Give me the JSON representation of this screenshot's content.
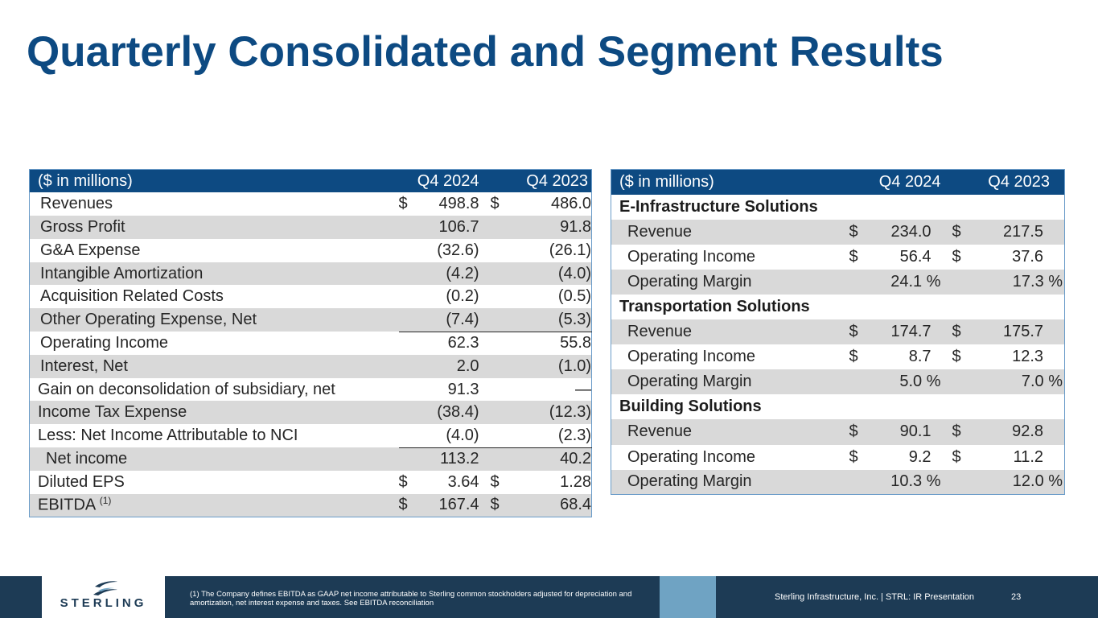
{
  "title": "Quarterly Consolidated and Segment Results",
  "left_table": {
    "header": {
      "label": "($ in millions)",
      "col1": "Q4 2024",
      "col2": "Q4 2023"
    },
    "rows": [
      {
        "label": "Revenues",
        "d1": "$",
        "v1": "498.8",
        "d2": "$",
        "v2": "486.0"
      },
      {
        "label": "Gross Profit",
        "d1": "",
        "v1": "106.7",
        "d2": "",
        "v2": "91.8"
      },
      {
        "label": "G&A Expense",
        "d1": "",
        "v1": "(32.6)",
        "d2": "",
        "v2": "(26.1)"
      },
      {
        "label": "Intangible Amortization",
        "d1": "",
        "v1": "(4.2)",
        "d2": "",
        "v2": "(4.0)"
      },
      {
        "label": "Acquisition Related Costs",
        "d1": "",
        "v1": "(0.2)",
        "d2": "",
        "v2": "(0.5)"
      },
      {
        "label": "Other Operating Expense, Net",
        "d1": "",
        "v1": "(7.4)",
        "d2": "",
        "v2": "(5.3)"
      },
      {
        "label": "Operating Income",
        "d1": "",
        "v1": "62.3",
        "d2": "",
        "v2": "55.8"
      },
      {
        "label": "Interest, Net",
        "d1": "",
        "v1": "2.0",
        "d2": "",
        "v2": "(1.0)"
      },
      {
        "label": "Gain on deconsolidation of subsidiary, net",
        "d1": "",
        "v1": "91.3",
        "d2": "",
        "v2": "—"
      },
      {
        "label": "Income Tax Expense",
        "d1": "",
        "v1": "(38.4)",
        "d2": "",
        "v2": "(12.3)"
      },
      {
        "label": "Less: Net Income Attributable to NCI",
        "d1": "",
        "v1": "(4.0)",
        "d2": "",
        "v2": "(2.3)"
      },
      {
        "label": "Net income",
        "d1": "",
        "v1": "113.2",
        "d2": "",
        "v2": "40.2"
      },
      {
        "label": "Diluted EPS",
        "d1": "$",
        "v1": "3.64",
        "d2": "$",
        "v2": "1.28"
      },
      {
        "label": "EBITDA",
        "sup": "(1)",
        "d1": "$",
        "v1": "167.4",
        "d2": "$",
        "v2": "68.4"
      }
    ]
  },
  "right_table": {
    "header": {
      "label": "($ in millions)",
      "col1": "Q4 2024",
      "col2": "Q4 2023"
    },
    "segments": [
      {
        "name": "E-Infrastructure Solutions",
        "rows": [
          {
            "label": "Revenue",
            "d1": "$",
            "v1": "234.0",
            "d2": "$",
            "v2": "217.5"
          },
          {
            "label": "Operating Income",
            "d1": "$",
            "v1": "56.4",
            "d2": "$",
            "v2": "37.6"
          },
          {
            "label": "Operating Margin",
            "d1": "",
            "v1": "24.1 %",
            "d2": "",
            "v2": "17.3 %"
          }
        ]
      },
      {
        "name": "Transportation Solutions",
        "rows": [
          {
            "label": "Revenue",
            "d1": "$",
            "v1": "174.7",
            "d2": "$",
            "v2": "175.7"
          },
          {
            "label": "Operating Income",
            "d1": "$",
            "v1": "8.7",
            "d2": "$",
            "v2": "12.3"
          },
          {
            "label": "Operating Margin",
            "d1": "",
            "v1": "5.0 %",
            "d2": "",
            "v2": "7.0 %"
          }
        ]
      },
      {
        "name": "Building Solutions",
        "rows": [
          {
            "label": "Revenue",
            "d1": "$",
            "v1": "90.1",
            "d2": "$",
            "v2": "92.8"
          },
          {
            "label": "Operating Income",
            "d1": "$",
            "v1": "9.2",
            "d2": "$",
            "v2": "11.2"
          },
          {
            "label": "Operating Margin",
            "d1": "",
            "v1": "10.3 %",
            "d2": "",
            "v2": "12.0 %"
          }
        ]
      }
    ]
  },
  "footer": {
    "logo_text": "STERLING",
    "footnote_marker": "(1)",
    "footnote": "The Company defines EBITDA as GAAP net income attributable to Sterling common stockholders  adjusted for depreciation and amortization, net interest expense and taxes. See EBITDA reconciliation",
    "presentation": "Sterling Infrastructure, Inc. | STRL:  IR Presentation",
    "page": "23",
    "colors": {
      "navy": "#1d3b55",
      "title_blue": "#0d4a82",
      "accent": "#6fa3c3"
    }
  }
}
